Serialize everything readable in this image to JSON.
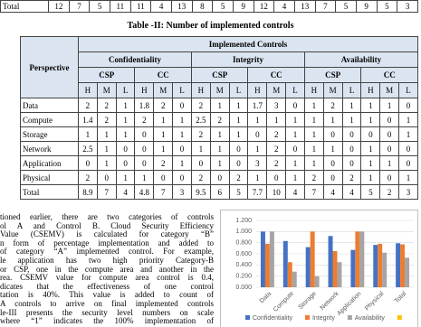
{
  "top_row": {
    "label": "Total",
    "values": [
      12,
      7,
      5,
      11,
      11,
      4,
      13,
      8,
      5,
      9,
      12,
      4,
      13,
      7,
      5,
      9,
      5,
      3
    ]
  },
  "caption": "Table -II: Number of implemented controls",
  "table": {
    "corner": "Perspective",
    "group_header": "Implemented Controls",
    "groups": [
      {
        "name": "Confidentiality",
        "subs": [
          "CSP",
          "CC"
        ]
      },
      {
        "name": "Integrity",
        "subs": [
          "CSP",
          "CC"
        ]
      },
      {
        "name": "Availability",
        "subs": [
          "CSP",
          "CC"
        ]
      }
    ],
    "levels": [
      "H",
      "M",
      "L"
    ],
    "rows": [
      {
        "label": "Data",
        "cells": [
          2,
          2,
          1,
          1.8,
          2,
          0,
          2,
          1,
          1,
          1.7,
          3,
          0,
          1,
          2,
          1,
          1,
          1,
          0
        ]
      },
      {
        "label": "Compute",
        "cells": [
          1.4,
          2,
          1,
          2,
          1,
          1,
          2.5,
          2,
          1,
          1,
          1,
          1,
          1,
          1,
          1,
          1,
          0,
          1
        ]
      },
      {
        "label": "Storage",
        "cells": [
          1,
          1,
          1,
          0,
          1,
          1,
          2,
          1,
          1,
          0,
          2,
          1,
          1,
          0,
          0,
          0,
          0,
          1
        ]
      },
      {
        "label": "Network",
        "cells": [
          2.5,
          1,
          0,
          0,
          1,
          0,
          1,
          1,
          0,
          1,
          2,
          0,
          1,
          1,
          0,
          1,
          0,
          0
        ]
      },
      {
        "label": "Application",
        "cells": [
          0,
          1,
          0,
          0,
          2,
          1,
          0,
          1,
          0,
          3,
          2,
          1,
          1,
          0,
          0,
          1,
          1,
          0
        ]
      },
      {
        "label": "Physical",
        "cells": [
          2,
          0,
          1,
          1,
          0,
          0,
          2,
          0,
          2,
          1,
          0,
          1,
          2,
          0,
          2,
          1,
          0,
          1
        ]
      },
      {
        "label": "Total",
        "cells": [
          8.9,
          7,
          4,
          4.8,
          7,
          3,
          9.5,
          6,
          5,
          7.7,
          10,
          4,
          7,
          4,
          4,
          5,
          2,
          3
        ]
      }
    ]
  },
  "paragraph_lines": [
    "tioned earlier, there are two categories of controls",
    "ol A and Control B. Cloud Security Efficiency",
    "Value (CSEMV) is calculated for category “B”",
    "n form of percentage implementation and added to",
    "of category “A” implemented control. For example,",
    "le application has two high priority Category-B",
    "or CSP, one in the compute area and another in the",
    "rea. CSEMV value for compute area control is 0.4,",
    "dicates that the effectiveness of one control",
    "tation is 40%. This value is added to count of",
    "A controls to arrive on final implemented controls",
    "le-III presents the security level numbers on scale",
    "where “1” indicates the 100% implementation of"
  ],
  "chart_data": {
    "type": "bar",
    "categories": [
      "Data",
      "Compute",
      "Storage",
      "Network",
      "Application",
      "Physical",
      "Total"
    ],
    "series": [
      {
        "name": "Confidentiality",
        "color": "#4472c4",
        "values": [
          1.0,
          0.83,
          0.72,
          0.92,
          0.67,
          0.76,
          0.79
        ]
      },
      {
        "name": "Integrity",
        "color": "#ed7d31",
        "values": [
          0.78,
          0.45,
          1.0,
          0.65,
          1.0,
          0.78,
          0.77
        ]
      },
      {
        "name": "Availability",
        "color": "#a5a5a5",
        "values": [
          1.0,
          0.28,
          0.2,
          0.45,
          1.0,
          0.62,
          0.53
        ]
      }
    ],
    "ylim": [
      0,
      1.2
    ],
    "yticks": [
      {
        "value": 0,
        "label": "0.000"
      },
      {
        "value": 0.2,
        "label": "0.200"
      },
      {
        "value": 0.4,
        "label": "0.400"
      },
      {
        "value": 0.6,
        "label": "0.600"
      },
      {
        "value": 0.8,
        "label": "0.800"
      },
      {
        "value": 1.0,
        "label": "1.000"
      },
      {
        "value": 1.2,
        "label": "1.200"
      }
    ],
    "grid": true
  }
}
